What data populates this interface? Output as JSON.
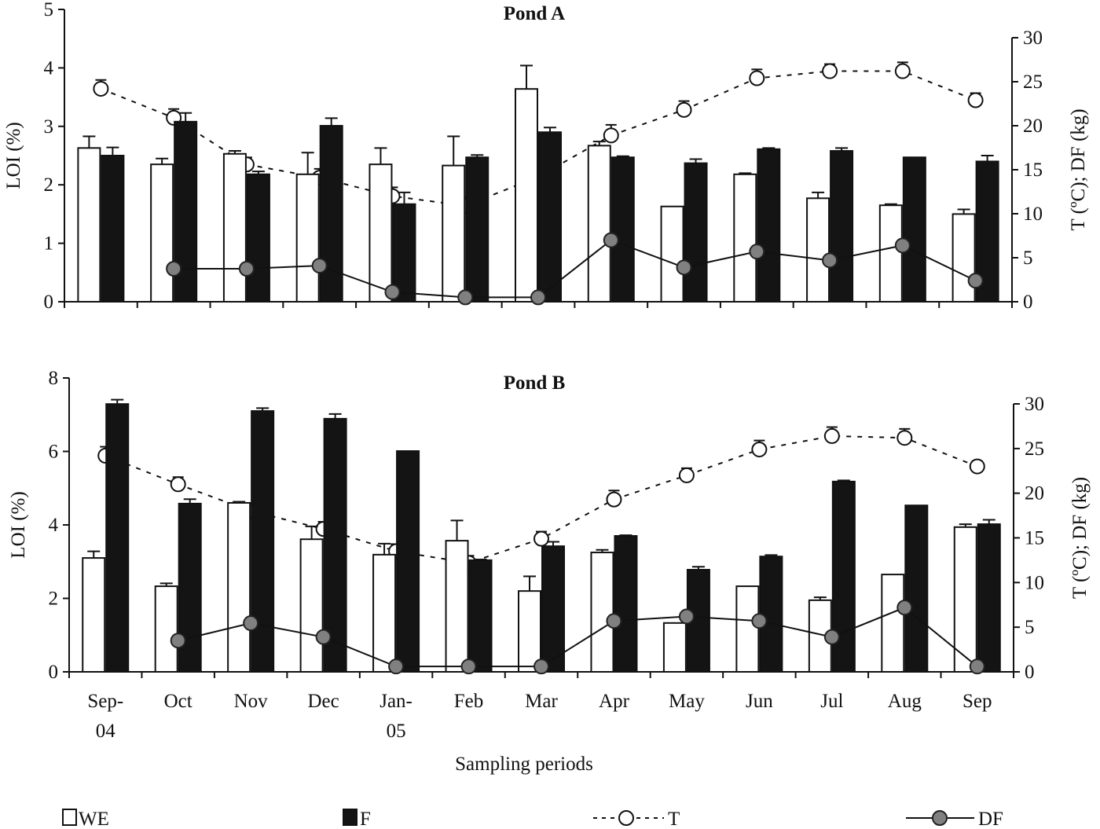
{
  "chart_data": [
    {
      "type": "bar",
      "title": "Pond A",
      "ylabel": "LOI (%)",
      "y2label": "T (ºC); DF (kg)",
      "ylim": [
        0,
        5
      ],
      "yticks": [
        0,
        1,
        2,
        3,
        4,
        5
      ],
      "y2lim": [
        0,
        30
      ],
      "y2ticks": [
        0,
        5,
        10,
        15,
        20,
        25,
        30
      ],
      "categories": [
        "Sep-04",
        "Oct",
        "Nov",
        "Dec",
        "Jan-05",
        "Feb",
        "Mar",
        "Apr",
        "May",
        "Jun",
        "Jul",
        "Aug",
        "Sep"
      ],
      "series": [
        {
          "name": "WE",
          "kind": "bar",
          "axis": "left",
          "color": "#ffffff",
          "values": [
            2.63,
            2.35,
            2.53,
            2.18,
            2.35,
            2.33,
            3.64,
            2.67,
            1.63,
            2.18,
            1.77,
            1.65,
            1.5
          ],
          "errors": [
            0.2,
            0.1,
            0.05,
            0.37,
            0.28,
            0.5,
            0.4,
            0.07,
            0,
            0.02,
            0.1,
            0.02,
            0.08
          ]
        },
        {
          "name": "F",
          "kind": "bar",
          "axis": "left",
          "color": "#141414",
          "values": [
            2.5,
            3.08,
            2.18,
            3.01,
            1.67,
            2.47,
            2.9,
            2.47,
            2.37,
            2.61,
            2.58,
            2.47,
            2.4
          ],
          "errors": [
            0.14,
            0.15,
            0.05,
            0.13,
            0.2,
            0.04,
            0.08,
            0.02,
            0.07,
            0.02,
            0.05,
            0,
            0.1
          ]
        },
        {
          "name": "T",
          "kind": "line-dashed",
          "axis": "right",
          "color": "#ffffff",
          "values": [
            24.2,
            20.9,
            15.6,
            14.1,
            12.0,
            10.9,
            14.2,
            18.9,
            21.8,
            25.4,
            26.2,
            26.2,
            22.9
          ],
          "errors": [
            1,
            1,
            0.8,
            1,
            1,
            1,
            1,
            1.2,
            1,
            1,
            0.8,
            1,
            0.8
          ]
        },
        {
          "name": "DF",
          "kind": "line-solid",
          "axis": "right",
          "color": "#808080",
          "values": [
            null,
            3.75,
            3.75,
            4.1,
            1.1,
            0.5,
            0.5,
            7.0,
            3.9,
            5.7,
            4.7,
            6.4,
            2.4
          ]
        }
      ]
    },
    {
      "type": "bar",
      "title": "Pond B",
      "ylabel": "LOI (%)",
      "y2label": "T (ºC); DF (kg)",
      "xlabel": "Sampling periods",
      "ylim": [
        0,
        8
      ],
      "yticks": [
        0,
        2,
        4,
        6,
        8
      ],
      "y2lim": [
        0,
        30
      ],
      "y2ticks": [
        0,
        5,
        10,
        15,
        20,
        25,
        30
      ],
      "categories": [
        "Sep-04",
        "Oct",
        "Nov",
        "Dec",
        "Jan-05",
        "Feb",
        "Mar",
        "Apr",
        "May",
        "Jun",
        "Jul",
        "Aug",
        "Sep"
      ],
      "x_tick_labels": [
        [
          "Sep-",
          "04"
        ],
        [
          "Oct"
        ],
        [
          "Nov"
        ],
        [
          "Dec"
        ],
        [
          "Jan-",
          "05"
        ],
        [
          "Feb"
        ],
        [
          "Mar"
        ],
        [
          "Apr"
        ],
        [
          "May"
        ],
        [
          "Jun"
        ],
        [
          "Jul"
        ],
        [
          "Aug"
        ],
        [
          "Sep"
        ]
      ],
      "series": [
        {
          "name": "WE",
          "kind": "bar",
          "axis": "left",
          "color": "#ffffff",
          "values": [
            3.1,
            2.33,
            4.6,
            3.61,
            3.19,
            3.57,
            2.2,
            3.25,
            1.33,
            2.33,
            1.95,
            2.65,
            3.94
          ],
          "errors": [
            0.18,
            0.08,
            0.03,
            0.35,
            0.3,
            0.55,
            0.4,
            0.07,
            0,
            0,
            0.08,
            0,
            0.08
          ]
        },
        {
          "name": "F",
          "kind": "bar",
          "axis": "left",
          "color": "#141414",
          "values": [
            7.29,
            4.58,
            7.1,
            6.89,
            6.01,
            3.04,
            3.42,
            3.7,
            2.78,
            3.14,
            5.18,
            4.53,
            4.02
          ],
          "errors": [
            0.12,
            0.12,
            0.08,
            0.13,
            0,
            0.02,
            0.12,
            0.02,
            0.08,
            0.04,
            0.03,
            0,
            0.12
          ]
        },
        {
          "name": "T",
          "kind": "line-dashed",
          "axis": "right",
          "color": "#ffffff",
          "values": [
            24.2,
            21.0,
            18.0,
            16.0,
            13.5,
            12.2,
            14.9,
            19.3,
            22.0,
            24.9,
            26.4,
            26.2,
            23.0
          ],
          "errors": [
            1,
            0.8,
            0.8,
            0.8,
            0.8,
            0.8,
            0.8,
            1,
            0.8,
            1,
            1,
            1,
            0.6
          ]
        },
        {
          "name": "DF",
          "kind": "line-solid",
          "axis": "right",
          "color": "#808080",
          "values": [
            null,
            3.5,
            5.45,
            3.9,
            0.6,
            0.6,
            0.6,
            5.7,
            6.2,
            5.7,
            3.9,
            7.2,
            0.6
          ]
        }
      ]
    }
  ],
  "legend": {
    "placement": "bottom",
    "items": [
      {
        "label": "WE",
        "symbol": "open-box"
      },
      {
        "label": "F",
        "symbol": "filled-box"
      },
      {
        "label": "T",
        "symbol": "dashed-line-open-circle"
      },
      {
        "label": "DF",
        "symbol": "solid-line-grey-circle"
      }
    ]
  }
}
